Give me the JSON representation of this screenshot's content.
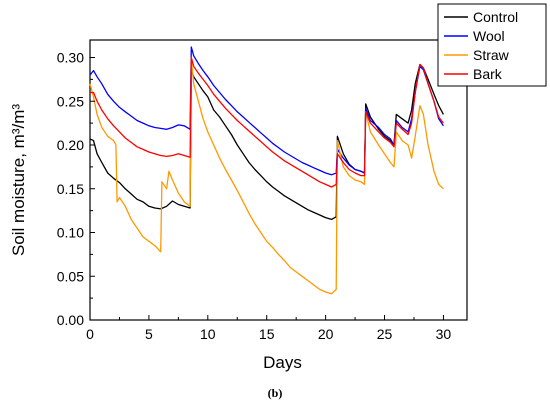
{
  "figure": {
    "caption": "(b)"
  },
  "chart_data": {
    "type": "line",
    "xlabel": "Days",
    "ylabel": "Soil moisture, m³/m³",
    "xlim": [
      0,
      32
    ],
    "ylim": [
      0.0,
      0.32
    ],
    "xticks": [
      0,
      5,
      10,
      15,
      20,
      25,
      30
    ],
    "yticks": [
      0.0,
      0.05,
      0.1,
      0.15,
      0.2,
      0.25,
      0.3
    ],
    "ytick_labels": [
      "0.00",
      "0.05",
      "0.10",
      "0.15",
      "0.20",
      "0.25",
      "0.30"
    ],
    "grid": false,
    "legend_position": "top-right (outside plot area)",
    "series": [
      {
        "name": "Control",
        "color": "#000000",
        "x": [
          0,
          0.3,
          0.6,
          1,
          1.5,
          2,
          2.5,
          3,
          3.5,
          4,
          4.5,
          5,
          5.5,
          6,
          6.5,
          7,
          7.5,
          8,
          8.5,
          8.6,
          8.8,
          9.2,
          9.6,
          10,
          10.5,
          11,
          11.5,
          12,
          12.5,
          13,
          13.5,
          14,
          14.5,
          15,
          15.5,
          16,
          16.5,
          17,
          17.5,
          18,
          18.5,
          19,
          19.5,
          20,
          20.5,
          20.9,
          21,
          21.5,
          22,
          22.5,
          23,
          23.3,
          23.4,
          23.8,
          24.5,
          25,
          25.5,
          25.8,
          26,
          26.5,
          27,
          27.3,
          27.6,
          28,
          28.3,
          28.7,
          29.2,
          29.6,
          30
        ],
        "y": [
          0.207,
          0.205,
          0.19,
          0.18,
          0.168,
          0.162,
          0.157,
          0.15,
          0.144,
          0.138,
          0.135,
          0.13,
          0.128,
          0.127,
          0.13,
          0.136,
          0.132,
          0.13,
          0.128,
          0.285,
          0.278,
          0.27,
          0.262,
          0.255,
          0.24,
          0.232,
          0.222,
          0.212,
          0.2,
          0.19,
          0.18,
          0.172,
          0.165,
          0.158,
          0.152,
          0.147,
          0.142,
          0.138,
          0.134,
          0.13,
          0.126,
          0.123,
          0.12,
          0.117,
          0.115,
          0.118,
          0.21,
          0.19,
          0.178,
          0.172,
          0.17,
          0.168,
          0.247,
          0.232,
          0.218,
          0.21,
          0.205,
          0.2,
          0.235,
          0.23,
          0.225,
          0.24,
          0.27,
          0.292,
          0.288,
          0.275,
          0.258,
          0.245,
          0.235
        ]
      },
      {
        "name": "Wool",
        "color": "#0000ff",
        "x": [
          0,
          0.3,
          0.6,
          1,
          1.5,
          2,
          2.5,
          3,
          3.5,
          4,
          4.5,
          5,
          5.5,
          6,
          6.5,
          7,
          7.5,
          8,
          8.5,
          8.6,
          8.8,
          9.2,
          9.6,
          10,
          10.5,
          11,
          11.5,
          12,
          12.5,
          13,
          13.5,
          14,
          14.5,
          15,
          15.5,
          16,
          16.5,
          17,
          17.5,
          18,
          18.5,
          19,
          19.5,
          20,
          20.5,
          20.9,
          21,
          21.5,
          22,
          22.5,
          23,
          23.3,
          23.4,
          23.8,
          24.5,
          25,
          25.5,
          25.8,
          26,
          26.5,
          27,
          27.3,
          27.6,
          28,
          28.3,
          28.7,
          29.2,
          29.6,
          30
        ],
        "y": [
          0.28,
          0.285,
          0.278,
          0.27,
          0.258,
          0.25,
          0.243,
          0.238,
          0.233,
          0.228,
          0.225,
          0.222,
          0.22,
          0.219,
          0.218,
          0.22,
          0.223,
          0.222,
          0.218,
          0.312,
          0.302,
          0.293,
          0.285,
          0.278,
          0.268,
          0.26,
          0.252,
          0.245,
          0.238,
          0.232,
          0.226,
          0.22,
          0.214,
          0.208,
          0.202,
          0.197,
          0.192,
          0.188,
          0.184,
          0.18,
          0.177,
          0.174,
          0.171,
          0.168,
          0.166,
          0.168,
          0.195,
          0.185,
          0.177,
          0.172,
          0.17,
          0.168,
          0.242,
          0.228,
          0.22,
          0.212,
          0.207,
          0.2,
          0.228,
          0.22,
          0.215,
          0.23,
          0.26,
          0.29,
          0.286,
          0.27,
          0.25,
          0.23,
          0.222
        ]
      },
      {
        "name": "Straw",
        "color": "#ff9900",
        "x": [
          0,
          0.3,
          0.6,
          1,
          1.5,
          2,
          2.2,
          2.3,
          2.5,
          3,
          3.5,
          4,
          4.5,
          5,
          5.5,
          6,
          6.1,
          6.5,
          6.7,
          7,
          7.5,
          8,
          8.5,
          8.6,
          8.8,
          9.2,
          9.6,
          10,
          10.5,
          11,
          11.5,
          12,
          12.5,
          13,
          13.5,
          14,
          14.5,
          15,
          15.5,
          16,
          16.5,
          17,
          17.5,
          18,
          18.5,
          19,
          19.5,
          20,
          20.5,
          20.9,
          21,
          21.5,
          22,
          22.5,
          23,
          23.3,
          23.4,
          23.8,
          24.5,
          25,
          25.5,
          25.8,
          26,
          26.5,
          27,
          27.3,
          27.6,
          28,
          28.3,
          28.7,
          29.2,
          29.6,
          30
        ],
        "y": [
          0.27,
          0.255,
          0.235,
          0.22,
          0.21,
          0.205,
          0.2,
          0.135,
          0.14,
          0.13,
          0.115,
          0.105,
          0.095,
          0.09,
          0.085,
          0.078,
          0.158,
          0.15,
          0.17,
          0.16,
          0.145,
          0.135,
          0.13,
          0.3,
          0.27,
          0.25,
          0.23,
          0.215,
          0.2,
          0.185,
          0.172,
          0.16,
          0.148,
          0.135,
          0.122,
          0.11,
          0.1,
          0.09,
          0.083,
          0.075,
          0.068,
          0.06,
          0.055,
          0.05,
          0.045,
          0.04,
          0.035,
          0.032,
          0.03,
          0.035,
          0.205,
          0.175,
          0.165,
          0.16,
          0.158,
          0.155,
          0.238,
          0.215,
          0.2,
          0.19,
          0.18,
          0.175,
          0.215,
          0.205,
          0.2,
          0.185,
          0.21,
          0.245,
          0.235,
          0.2,
          0.17,
          0.155,
          0.15
        ]
      },
      {
        "name": "Bark",
        "color": "#ff0000",
        "x": [
          0,
          0.3,
          0.6,
          1,
          1.5,
          2,
          2.5,
          3,
          3.5,
          4,
          4.5,
          5,
          5.5,
          6,
          6.5,
          7,
          7.5,
          8,
          8.5,
          8.6,
          8.8,
          9.2,
          9.6,
          10,
          10.5,
          11,
          11.5,
          12,
          12.5,
          13,
          13.5,
          14,
          14.5,
          15,
          15.5,
          16,
          16.5,
          17,
          17.5,
          18,
          18.5,
          19,
          19.5,
          20,
          20.5,
          20.9,
          21,
          21.5,
          22,
          22.5,
          23,
          23.3,
          23.4,
          23.8,
          24.5,
          25,
          25.5,
          25.8,
          26,
          26.5,
          27,
          27.3,
          27.6,
          28,
          28.3,
          28.7,
          29.2,
          29.6,
          30
        ],
        "y": [
          0.26,
          0.26,
          0.25,
          0.24,
          0.23,
          0.222,
          0.215,
          0.208,
          0.203,
          0.198,
          0.195,
          0.192,
          0.19,
          0.188,
          0.187,
          0.188,
          0.19,
          0.188,
          0.186,
          0.3,
          0.29,
          0.282,
          0.275,
          0.268,
          0.258,
          0.25,
          0.242,
          0.235,
          0.228,
          0.222,
          0.216,
          0.21,
          0.204,
          0.198,
          0.192,
          0.187,
          0.182,
          0.178,
          0.174,
          0.17,
          0.166,
          0.162,
          0.158,
          0.155,
          0.152,
          0.155,
          0.19,
          0.18,
          0.172,
          0.168,
          0.165,
          0.165,
          0.238,
          0.225,
          0.215,
          0.208,
          0.203,
          0.198,
          0.225,
          0.218,
          0.212,
          0.225,
          0.26,
          0.292,
          0.288,
          0.27,
          0.25,
          0.232,
          0.225
        ]
      }
    ]
  }
}
